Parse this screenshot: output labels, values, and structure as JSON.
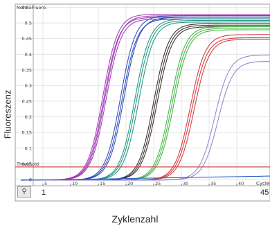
{
  "chart_data": {
    "type": "line",
    "title": "",
    "ylabel_inner": "Norm. Fluoro.",
    "xlabel_inner": "Cycles",
    "xlabel": "Zyklenzahl",
    "ylabel": "Fluoreszenz",
    "xlim": [
      0,
      46
    ],
    "ylim": [
      -0.02,
      0.56
    ],
    "x_ticks": [
      5,
      10,
      15,
      20,
      25,
      30,
      35,
      40
    ],
    "y_ticks": [
      "0.55",
      "0.5",
      "0.45",
      "0.4",
      "0.35",
      "0.3",
      "0.25",
      "0.2",
      "0.15",
      "0.1",
      "0.05",
      "0"
    ],
    "outer_ticks": [
      "1",
      "45"
    ],
    "threshold": {
      "label": "Threshold",
      "value": 0.04,
      "color": "#c8504a"
    },
    "grid": true,
    "series_groups": [
      {
        "color": "#9b2fb0",
        "midpoints": [
          15.8,
          16.0,
          16.2,
          16.4
        ],
        "plateau": [
          0.53,
          0.52,
          0.525,
          0.515
        ]
      },
      {
        "color": "#1f3fb5",
        "midpoints": [
          19.0,
          19.3,
          19.6
        ],
        "plateau": [
          0.525,
          0.515,
          0.52
        ]
      },
      {
        "color": "#0d8f7a",
        "midpoints": [
          21.6,
          21.9,
          22.3
        ],
        "plateau": [
          0.515,
          0.51,
          0.505
        ]
      },
      {
        "color": "#2a1c1c",
        "midpoints": [
          25.0,
          25.3,
          25.6
        ],
        "plateau": [
          0.5,
          0.495,
          0.49
        ]
      },
      {
        "color": "#33b233",
        "midpoints": [
          28.0,
          28.3,
          28.6
        ],
        "plateau": [
          0.49,
          0.485,
          0.48
        ]
      },
      {
        "color": "#d42a2a",
        "midpoints": [
          31.6,
          31.9,
          32.3
        ],
        "plateau": [
          0.465,
          0.455,
          0.45
        ]
      },
      {
        "color": "#8a7cc9",
        "midpoints": [
          36.0,
          36.6
        ],
        "plateau": [
          0.4,
          0.38
        ]
      },
      {
        "color": "#3060c0",
        "midpoints": [],
        "plateau": [],
        "flat": true
      }
    ]
  }
}
